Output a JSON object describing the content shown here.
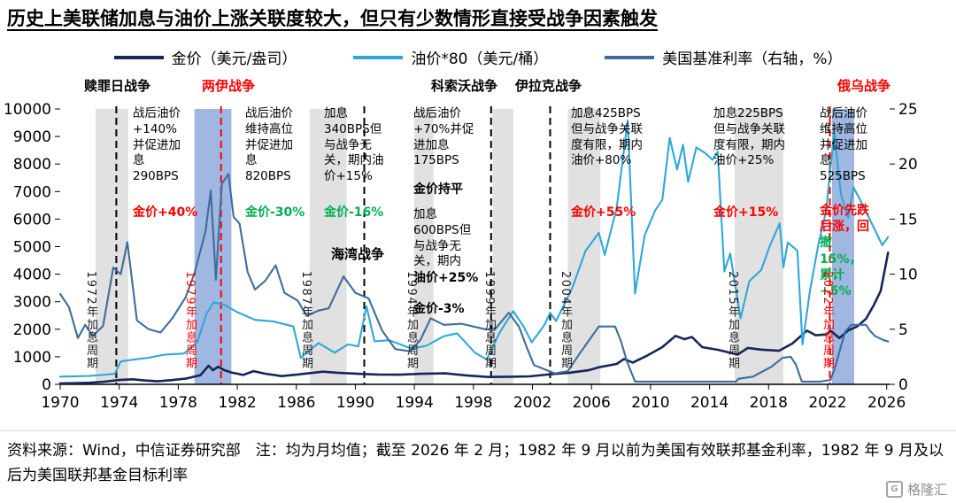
{
  "colors": {
    "red": "#FF0000",
    "green": "#00B050",
    "black": "#000000",
    "gold_line": "#18255A",
    "oil_line": "#2EA8D8",
    "rate_line": "#3E6D9C",
    "gray_band": "#D9D9D9",
    "blue_band": "#8FAADC"
  },
  "annotations": {
    "a1973_body": "战后油价+140%并促进加息290BPS",
    "a1973_result": "金价+40%",
    "a1980_body": "战后油价维持高位并促进加息820BPS",
    "a1980_result": "金价-30%",
    "a1987_body": "加息340BPS但与战争无关，期内油价+15%",
    "a1987_result": "金价-16%",
    "a1999_body": "战后油价+70%并促进加息175BPS",
    "a1999_result": "金价持平",
    "a1994_body": "加息600BPS但与战争无关，期内",
    "a1994_oil": "油价+25%",
    "a1994_result": "金价-3%",
    "gulf_label": "海湾战争",
    "a2004_body": "加息425BPS但与战争关联度有限，期内油价+80%",
    "a2004_result": "金价+55%",
    "a2015_body": "加息225BPS但与战争关联度有限，期内油价+25%",
    "a2015_result": "金价+15%",
    "a2022_body": "战后油价维持高位并促进加息525BPS",
    "a2022_result_part1": "金价先跌后涨，回",
    "a2022_result_part2": "撤15%，累计+5%"
  },
  "cycle_labels": [
    {
      "text": "1972年加息周期",
      "color": "#1a1a1a"
    },
    {
      "text": "1979年加息周期",
      "color": "#FF0000"
    },
    {
      "text": "1987年加息周期",
      "color": "#1a1a1a"
    },
    {
      "text": "1994年加息周期",
      "color": "#1a1a1a"
    },
    {
      "text": "1999年加息周期",
      "color": "#1a1a1a"
    },
    {
      "text": "2004年加息周期",
      "color": "#1a1a1a"
    },
    {
      "text": "2015年加息周期",
      "color": "#1a1a1a"
    },
    {
      "text": "2022年加息周期",
      "color": "#FF0000"
    }
  ],
  "footer": {
    "text": "资料来源：Wind，中信证券研究部　注：均为月均值；截至 2026 年 2 月；1982 年 9 月以前为美国有效联邦基金利率，1982 年 9 月及以后为美国联邦基金目标利率"
  },
  "logo": {
    "icon_letter": "G",
    "text": "格隆汇"
  },
  "chart_data": {
    "type": "line",
    "title": "历史上美联储加息与油价上涨关联度较大，但只有少数情形直接受战争因素触发",
    "x_range": [
      1970,
      2026.2
    ],
    "x_ticks": [
      1970,
      1974,
      1978,
      1982,
      1986,
      1990,
      1994,
      1998,
      2002,
      2006,
      2010,
      2014,
      2018,
      2022,
      2026
    ],
    "y_left": {
      "range": [
        0,
        10000
      ],
      "ticks": [
        0,
        1000,
        2000,
        3000,
        4000,
        5000,
        6000,
        7000,
        8000,
        9000,
        10000
      ]
    },
    "y_right": {
      "range": [
        0,
        25
      ],
      "ticks": [
        0,
        5,
        10,
        15,
        20,
        25
      ],
      "unit": "%"
    },
    "legend_position": "top-center",
    "grid": false,
    "bands": [
      {
        "from": 1972.4,
        "to": 1974.6,
        "color": "#D9D9D9",
        "opacity": 0.8
      },
      {
        "from": 1979.1,
        "to": 1981.6,
        "color": "#8FAADC",
        "opacity": 0.85
      },
      {
        "from": 1986.9,
        "to": 1989.4,
        "color": "#D9D9D9",
        "opacity": 0.8
      },
      {
        "from": 1994.0,
        "to": 1995.3,
        "color": "#D9D9D9",
        "opacity": 0.8
      },
      {
        "from": 1999.3,
        "to": 2000.7,
        "color": "#D9D9D9",
        "opacity": 0.8
      },
      {
        "from": 2004.4,
        "to": 2006.6,
        "color": "#D9D9D9",
        "opacity": 0.8
      },
      {
        "from": 2015.7,
        "to": 2019.0,
        "color": "#D9D9D9",
        "opacity": 0.8
      },
      {
        "from": 2022.3,
        "to": 2023.8,
        "color": "#8FAADC",
        "opacity": 0.85
      }
    ],
    "event_lines": [
      {
        "year": 1973.8,
        "color": "#000000",
        "label": "赎罪日战争"
      },
      {
        "year": 1980.9,
        "color": "#FF0000",
        "label": "两伊战争"
      },
      {
        "year": 1990.6,
        "color": "#000000",
        "label": "海湾战争"
      },
      {
        "year": 1999.2,
        "color": "#000000",
        "label": "科索沃战争"
      },
      {
        "year": 2003.2,
        "color": "#000000",
        "label": "伊拉克战争"
      },
      {
        "year": 2022.15,
        "color": "#FF0000",
        "label": "俄乌战争"
      }
    ],
    "series": [
      {
        "id": "gold-price-line",
        "name": "金价（美元/盎司）",
        "axis": "left",
        "color": "#18255A",
        "stroke_width": 2.6,
        "points": [
          [
            1970,
            36
          ],
          [
            1971,
            41
          ],
          [
            1972,
            58
          ],
          [
            1973,
            97
          ],
          [
            1974,
            159
          ],
          [
            1974.9,
            184
          ],
          [
            1975.7,
            140
          ],
          [
            1976.6,
            110
          ],
          [
            1977.5,
            150
          ],
          [
            1978.5,
            205
          ],
          [
            1979.5,
            330
          ],
          [
            1980.05,
            675
          ],
          [
            1980.35,
            510
          ],
          [
            1980.7,
            640
          ],
          [
            1981.1,
            520
          ],
          [
            1981.6,
            430
          ],
          [
            1982.4,
            340
          ],
          [
            1983.1,
            480
          ],
          [
            1983.9,
            385
          ],
          [
            1985,
            300
          ],
          [
            1986,
            350
          ],
          [
            1987.8,
            460
          ],
          [
            1988.8,
            420
          ],
          [
            1990,
            390
          ],
          [
            1991.5,
            358
          ],
          [
            1993,
            352
          ],
          [
            1994.5,
            384
          ],
          [
            1996.1,
            400
          ],
          [
            1997.5,
            324
          ],
          [
            1999,
            268
          ],
          [
            2000.5,
            277
          ],
          [
            2001.8,
            290
          ],
          [
            2003,
            355
          ],
          [
            2004.5,
            420
          ],
          [
            2005.8,
            510
          ],
          [
            2006.5,
            620
          ],
          [
            2007.7,
            740
          ],
          [
            2008.2,
            920
          ],
          [
            2008.8,
            790
          ],
          [
            2009.8,
            1050
          ],
          [
            2010.8,
            1350
          ],
          [
            2011.7,
            1760
          ],
          [
            2012.3,
            1640
          ],
          [
            2012.8,
            1720
          ],
          [
            2013.5,
            1350
          ],
          [
            2014.6,
            1250
          ],
          [
            2015.9,
            1080
          ],
          [
            2016.6,
            1320
          ],
          [
            2017.5,
            1260
          ],
          [
            2018.7,
            1220
          ],
          [
            2019.6,
            1480
          ],
          [
            2020.6,
            1950
          ],
          [
            2021.2,
            1780
          ],
          [
            2021.9,
            1810
          ],
          [
            2022.2,
            1950
          ],
          [
            2022.8,
            1680
          ],
          [
            2023.4,
            1960
          ],
          [
            2024,
            2100
          ],
          [
            2024.6,
            2380
          ],
          [
            2025.1,
            2850
          ],
          [
            2025.6,
            3400
          ],
          [
            2026.1,
            4780
          ]
        ]
      },
      {
        "id": "oil-price-line",
        "name": "油价*80（美元/桶）",
        "axis": "left",
        "color": "#2EA8D8",
        "stroke_width": 2.1,
        "points": [
          [
            1970,
            280
          ],
          [
            1971,
            292
          ],
          [
            1972,
            305
          ],
          [
            1973.7,
            380
          ],
          [
            1974.1,
            830
          ],
          [
            1975,
            905
          ],
          [
            1976,
            965
          ],
          [
            1977,
            1075
          ],
          [
            1978.4,
            1120
          ],
          [
            1979.3,
            1550
          ],
          [
            1979.9,
            2550
          ],
          [
            1980.4,
            2980
          ],
          [
            1981.1,
            2890
          ],
          [
            1982,
            2620
          ],
          [
            1983.2,
            2340
          ],
          [
            1984.5,
            2280
          ],
          [
            1985.8,
            2100
          ],
          [
            1986.3,
            960
          ],
          [
            1986.8,
            1190
          ],
          [
            1987.5,
            1500
          ],
          [
            1988.6,
            1150
          ],
          [
            1989.5,
            1450
          ],
          [
            1990.2,
            1380
          ],
          [
            1990.75,
            2840
          ],
          [
            1991.3,
            1560
          ],
          [
            1992.3,
            1600
          ],
          [
            1993.8,
            1300
          ],
          [
            1994.8,
            1400
          ],
          [
            1996,
            1750
          ],
          [
            1996.9,
            1850
          ],
          [
            1998.1,
            1150
          ],
          [
            1998.9,
            900
          ],
          [
            1999.8,
            1900
          ],
          [
            2000.7,
            2660
          ],
          [
            2001.4,
            2100
          ],
          [
            2001.95,
            1520
          ],
          [
            2002.8,
            2150
          ],
          [
            2003.2,
            2600
          ],
          [
            2003.6,
            2300
          ],
          [
            2004.7,
            3500
          ],
          [
            2005.6,
            4850
          ],
          [
            2006.5,
            5500
          ],
          [
            2006.9,
            4700
          ],
          [
            2007.7,
            6400
          ],
          [
            2008.45,
            9580
          ],
          [
            2008.95,
            3300
          ],
          [
            2009.6,
            5400
          ],
          [
            2010.3,
            6300
          ],
          [
            2010.8,
            6700
          ],
          [
            2011.3,
            8950
          ],
          [
            2011.8,
            7800
          ],
          [
            2012.2,
            8700
          ],
          [
            2012.55,
            7350
          ],
          [
            2013.1,
            8600
          ],
          [
            2013.7,
            8400
          ],
          [
            2014.2,
            8150
          ],
          [
            2014.55,
            8450
          ],
          [
            2015.0,
            4100
          ],
          [
            2015.4,
            4750
          ],
          [
            2016.1,
            2400
          ],
          [
            2016.7,
            3750
          ],
          [
            2017.5,
            4150
          ],
          [
            2018.1,
            5050
          ],
          [
            2018.75,
            5850
          ],
          [
            2019.0,
            4250
          ],
          [
            2019.3,
            5150
          ],
          [
            2019.95,
            4850
          ],
          [
            2020.3,
            1450
          ],
          [
            2020.8,
            3400
          ],
          [
            2021.4,
            5150
          ],
          [
            2021.9,
            6300
          ],
          [
            2022.2,
            7900
          ],
          [
            2022.45,
            9150
          ],
          [
            2022.9,
            6900
          ],
          [
            2023.4,
            6050
          ],
          [
            2023.75,
            7150
          ],
          [
            2024.2,
            6700
          ],
          [
            2024.8,
            6050
          ],
          [
            2025.3,
            5500
          ],
          [
            2025.7,
            5050
          ],
          [
            2026.1,
            5350
          ]
        ]
      },
      {
        "id": "us-rate-line",
        "name": "美国基准利率（右轴，%）",
        "axis": "right",
        "color": "#3E6D9C",
        "stroke_width": 2.1,
        "points": [
          [
            1970,
            8.2
          ],
          [
            1970.6,
            7.0
          ],
          [
            1971.2,
            4.2
          ],
          [
            1971.7,
            5.4
          ],
          [
            1972.2,
            4.4
          ],
          [
            1972.9,
            5.3
          ],
          [
            1973.6,
            10.6
          ],
          [
            1974.1,
            10.0
          ],
          [
            1974.55,
            12.9
          ],
          [
            1975.2,
            5.8
          ],
          [
            1976,
            5.0
          ],
          [
            1976.8,
            4.7
          ],
          [
            1977.6,
            6.0
          ],
          [
            1978.5,
            7.9
          ],
          [
            1979.1,
            10.1
          ],
          [
            1979.85,
            13.9
          ],
          [
            1980.2,
            17.6
          ],
          [
            1980.55,
            9.5
          ],
          [
            1980.95,
            18.2
          ],
          [
            1981.4,
            19.1
          ],
          [
            1981.75,
            15.2
          ],
          [
            1982.15,
            14.6
          ],
          [
            1982.7,
            10.2
          ],
          [
            1983.2,
            8.6
          ],
          [
            1983.9,
            9.4
          ],
          [
            1984.6,
            10.8
          ],
          [
            1985.2,
            8.3
          ],
          [
            1986.1,
            7.6
          ],
          [
            1986.7,
            6.2
          ],
          [
            1987.5,
            6.7
          ],
          [
            1988.2,
            6.9
          ],
          [
            1989.2,
            9.8
          ],
          [
            1990,
            8.3
          ],
          [
            1990.9,
            7.8
          ],
          [
            1991.8,
            4.9
          ],
          [
            1992.7,
            3.2
          ],
          [
            1993.7,
            3.0
          ],
          [
            1994.4,
            4.0
          ],
          [
            1995.1,
            6.0
          ],
          [
            1996,
            5.4
          ],
          [
            1997.2,
            5.5
          ],
          [
            1998.8,
            5.0
          ],
          [
            1999.4,
            4.9
          ],
          [
            2000.4,
            6.5
          ],
          [
            2001.1,
            5.2
          ],
          [
            2001.6,
            3.4
          ],
          [
            2002.1,
            1.75
          ],
          [
            2003.5,
            1.0
          ],
          [
            2004.4,
            1.2
          ],
          [
            2005.2,
            2.8
          ],
          [
            2006.5,
            5.25
          ],
          [
            2007.6,
            5.25
          ],
          [
            2008,
            3.9
          ],
          [
            2008.4,
            2.1
          ],
          [
            2008.95,
            0.25
          ],
          [
            2010,
            0.25
          ],
          [
            2012,
            0.25
          ],
          [
            2014,
            0.25
          ],
          [
            2015.8,
            0.25
          ],
          [
            2015.95,
            0.5
          ],
          [
            2016.95,
            0.7
          ],
          [
            2017.5,
            1.1
          ],
          [
            2018.2,
            1.6
          ],
          [
            2018.95,
            2.4
          ],
          [
            2019.5,
            2.5
          ],
          [
            2019.85,
            1.8
          ],
          [
            2020.25,
            0.25
          ],
          [
            2021.5,
            0.25
          ],
          [
            2022.2,
            0.4
          ],
          [
            2022.55,
            1.7
          ],
          [
            2022.85,
            3.2
          ],
          [
            2023.2,
            4.8
          ],
          [
            2023.6,
            5.4
          ],
          [
            2024.6,
            5.4
          ],
          [
            2024.85,
            4.9
          ],
          [
            2025.2,
            4.4
          ],
          [
            2025.8,
            4.0
          ],
          [
            2026.1,
            3.9
          ]
        ]
      }
    ]
  }
}
